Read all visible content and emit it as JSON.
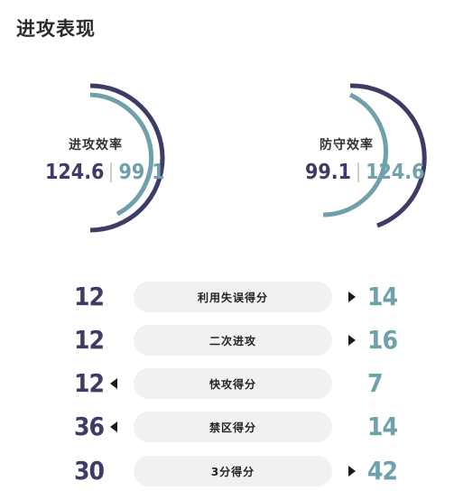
{
  "section_title": "进攻表现",
  "colors": {
    "dark": "#3d3c66",
    "light": "#6fa0ab",
    "pill": "#f1f1f3"
  },
  "offense_gauge": {
    "label": "进攻效率",
    "value_dark": "124.6",
    "value_light": "99.1"
  },
  "defense_gauge": {
    "label": "防守效率",
    "value_dark": "99.1",
    "value_light": "124.6"
  },
  "stats": [
    {
      "label": "利用失误得分",
      "left": "12",
      "right": "14",
      "arrow": "right"
    },
    {
      "label": "二次进攻",
      "left": "12",
      "right": "16",
      "arrow": "right"
    },
    {
      "label": "快攻得分",
      "left": "12",
      "right": "7",
      "arrow": "left"
    },
    {
      "label": "禁区得分",
      "left": "36",
      "right": "14",
      "arrow": "left"
    },
    {
      "label": "3分得分",
      "left": "30",
      "right": "42",
      "arrow": "right"
    }
  ]
}
